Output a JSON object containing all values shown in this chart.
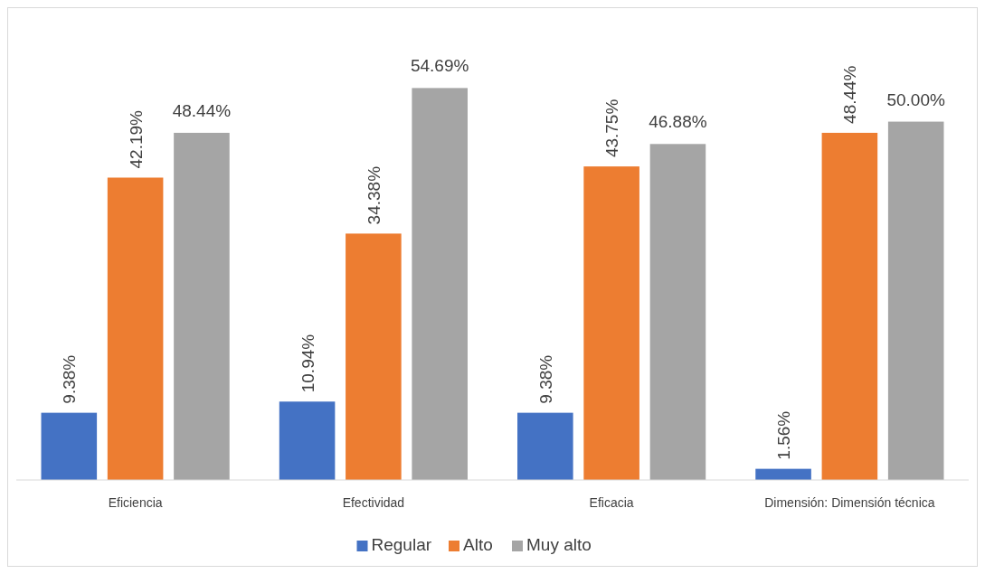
{
  "chart_data": {
    "type": "bar",
    "categories": [
      "Eficiencia",
      "Efectividad",
      "Eficacia",
      "Dimensión: Dimensión técnica"
    ],
    "series": [
      {
        "name": "Regular",
        "color": "#4472c4",
        "values": [
          9.38,
          10.94,
          9.38,
          1.56
        ],
        "value_labels": [
          "9.38%",
          "10.94%",
          "9.38%",
          "1.56%"
        ]
      },
      {
        "name": "Alto",
        "color": "#ed7d31",
        "values": [
          42.19,
          34.38,
          43.75,
          48.44
        ],
        "value_labels": [
          "42.19%",
          "34.38%",
          "43.75%",
          "48.44%"
        ]
      },
      {
        "name": "Muy alto",
        "color": "#a5a5a5",
        "values": [
          48.44,
          54.69,
          46.88,
          50.0
        ],
        "value_labels": [
          "48.44%",
          "54.69%",
          "46.88%",
          "50.00%"
        ]
      }
    ],
    "legend": "bottom"
  }
}
